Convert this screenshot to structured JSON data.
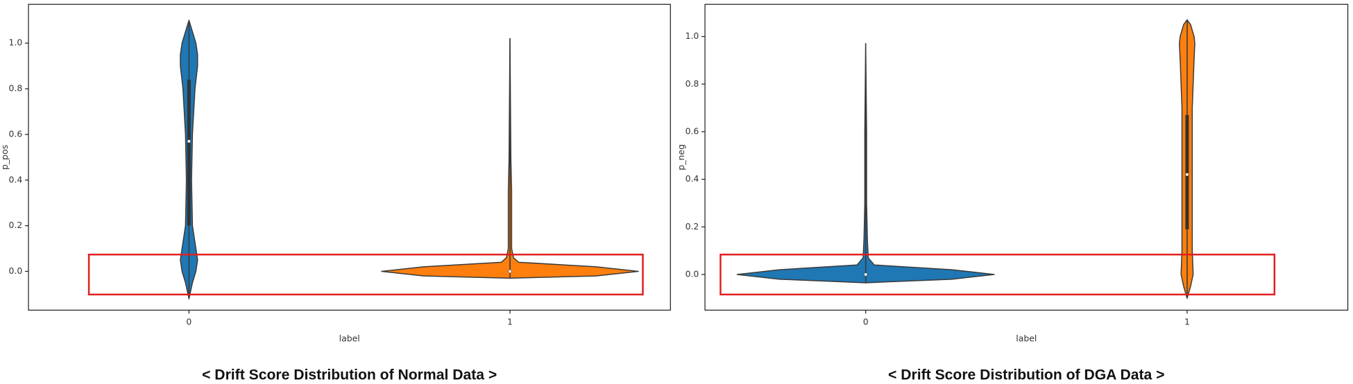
{
  "chart_data": [
    {
      "type": "violin",
      "xlabel": "label",
      "ylabel": "p_pos",
      "caption": "< Drift Score Distribution of Normal Data >",
      "categories": [
        "0",
        "1"
      ],
      "ylim": [
        -0.17,
        1.17
      ],
      "yticks": [
        {
          "value": 0,
          "label": "0.0"
        },
        0.2,
        0.4,
        0.6,
        0.8,
        {
          "value": 1,
          "label": "1.0"
        }
      ],
      "series": [
        {
          "name": "0",
          "color": "#1f77b4",
          "q1": 0.2,
          "median": 0.57,
          "q3": 0.84,
          "grid": [
            -0.12,
            -0.05,
            0,
            0.05,
            0.1,
            0.2,
            0.4,
            0.6,
            0.8,
            0.9,
            0.95,
            1.0,
            1.05,
            1.1
          ],
          "density": [
            0,
            0.027,
            0.054,
            0.067,
            0.054,
            0.027,
            0.02,
            0.027,
            0.047,
            0.067,
            0.067,
            0.054,
            0.027,
            0
          ]
        },
        {
          "name": "1",
          "color": "#ff7f0e",
          "q1": -0.005,
          "median": 0.0,
          "q3": 0.005,
          "grid": [
            -0.03,
            -0.02,
            0,
            0.02,
            0.04,
            0.06,
            0.1,
            0.2,
            0.35,
            0.5,
            1.02
          ],
          "density": [
            0,
            0.67,
            1,
            0.67,
            0.067,
            0.027,
            0.013,
            0.013,
            0.013,
            0.007,
            0
          ]
        }
      ]
    },
    {
      "type": "violin",
      "xlabel": "label",
      "ylabel": "p_neg",
      "caption": "< Drift Score Distribution of DGA Data >",
      "categories": [
        "0",
        "1"
      ],
      "ylim": [
        -0.15,
        1.135
      ],
      "yticks": [
        {
          "value": 0,
          "label": "0.0"
        },
        0.2,
        0.4,
        0.6,
        0.8,
        {
          "value": 1,
          "label": "1.0"
        }
      ],
      "series": [
        {
          "name": "0",
          "color": "#1f77b4",
          "q1": -0.005,
          "median": 0.0,
          "q3": 0.005,
          "grid": [
            -0.035,
            -0.02,
            0,
            0.02,
            0.04,
            0.07,
            0.15,
            0.3,
            0.6,
            0.97
          ],
          "density": [
            0,
            0.67,
            1,
            0.67,
            0.067,
            0.02,
            0.013,
            0.007,
            0.007,
            0
          ]
        },
        {
          "name": "1",
          "color": "#ff7f0e",
          "q1": 0.19,
          "median": 0.42,
          "q3": 0.67,
          "grid": [
            -0.1,
            -0.05,
            0,
            0.1,
            0.3,
            0.5,
            0.7,
            0.9,
            0.97,
            1.0,
            1.05,
            1.07
          ],
          "density": [
            0,
            0.027,
            0.047,
            0.04,
            0.04,
            0.04,
            0.04,
            0.054,
            0.06,
            0.054,
            0.027,
            0
          ]
        }
      ]
    }
  ]
}
